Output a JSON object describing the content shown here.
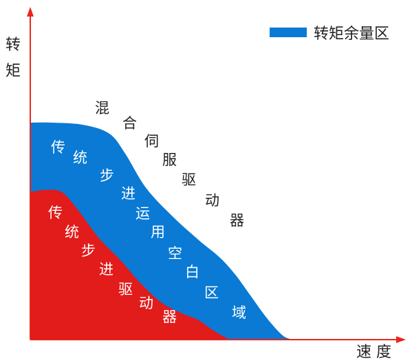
{
  "chart_data": {
    "type": "area",
    "title": "",
    "xlabel": "速 度",
    "ylabel": "转矩",
    "legend": {
      "position": "top-right",
      "entries": [
        {
          "label": "转矩余量区",
          "color": "#0a7ad4"
        }
      ]
    },
    "series": [
      {
        "name": "混合伺服驱动器",
        "color": "#0a7ad4",
        "x": [
          0,
          8,
          20,
          30,
          36,
          44,
          54,
          64,
          72,
          78,
          84,
          90,
          96,
          100
        ],
        "y": [
          100,
          100,
          99,
          95,
          86,
          70,
          57,
          46,
          38,
          30,
          20,
          10,
          2,
          0
        ]
      },
      {
        "name": "传统步进驱动器",
        "color": "#e21b1b",
        "x": [
          0,
          6,
          12,
          18,
          26,
          34,
          42,
          50,
          58,
          64,
          70,
          76,
          80
        ],
        "y": [
          68,
          69,
          68,
          60,
          47,
          37,
          26,
          17,
          12,
          9,
          4,
          0,
          0
        ]
      }
    ],
    "region_labels": {
      "hybrid": "混合伺服驱动器",
      "margin": "传统步进运用空白区域",
      "stepper": "传统步进驱动器"
    },
    "grid": false,
    "colors": {
      "axis": "#e8261c",
      "text": "#222222",
      "region_text": "#ffffff"
    }
  }
}
